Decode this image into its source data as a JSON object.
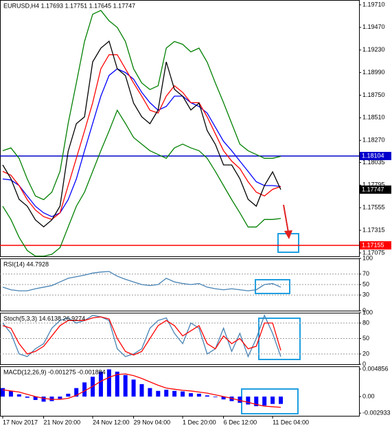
{
  "chart_data": [
    {
      "type": "line",
      "title": "EURUSD,H4  1.17693 1.17751 1.17645 1.17747",
      "categories": [
        "17 Nov 2017",
        null,
        null,
        null,
        null,
        "21 Nov 20:00",
        null,
        null,
        null,
        null,
        null,
        "24 Nov 12:00",
        null,
        null,
        null,
        null,
        "29 Nov 04:00",
        null,
        null,
        null,
        null,
        null,
        "1 Dec 20:00",
        null,
        null,
        null,
        null,
        "6 Dec 12:00",
        null,
        null,
        null,
        null,
        null,
        "11 Dec 04:00",
        null
      ],
      "series": [
        {
          "color": "#008000",
          "values": [
            1.1816,
            1.1819,
            1.1808,
            1.1786,
            1.1768,
            1.1764,
            1.1772,
            1.1794,
            1.1845,
            1.1888,
            1.1932,
            1.1961,
            1.1965,
            1.1954,
            1.1947,
            1.1932,
            1.1903,
            1.1888,
            1.1881,
            1.1885,
            1.1925,
            1.1932,
            1.1929,
            1.1921,
            1.1925,
            1.191,
            1.1888,
            1.1867,
            1.1845,
            1.1823,
            1.1816,
            1.1812,
            1.1808,
            1.1808,
            1.181
          ]
        },
        {
          "color": "#008000",
          "values": [
            1.1757,
            1.1743,
            1.1724,
            1.171,
            1.1704,
            1.1704,
            1.1706,
            1.1713,
            1.1735,
            1.1757,
            1.1772,
            1.1794,
            1.1816,
            1.1837,
            1.1859,
            1.1845,
            1.183,
            1.1823,
            1.1816,
            1.1812,
            1.1808,
            1.1819,
            1.1823,
            1.1819,
            1.1816,
            1.1808,
            1.1794,
            1.1779,
            1.1764,
            1.175,
            1.1735,
            1.1735,
            1.1743,
            1.1743,
            1.1744
          ]
        },
        {
          "color": "#0000ff",
          "values": [
            1.1786,
            1.1785,
            1.1779,
            1.1768,
            1.1757,
            1.175,
            1.1746,
            1.175,
            1.1764,
            1.1786,
            1.1816,
            1.1845,
            1.1874,
            1.1896,
            1.1903,
            1.1899,
            1.1892,
            1.1878,
            1.1867,
            1.1859,
            1.1863,
            1.1874,
            1.1874,
            1.1867,
            1.1863,
            1.1856,
            1.1841,
            1.1826,
            1.1816,
            1.1805,
            1.1794,
            1.1783,
            1.1779,
            1.1779,
            1.1778
          ]
        },
        {
          "color": "#ff0000",
          "values": [
            1.1794,
            1.179,
            1.1779,
            1.1764,
            1.1753,
            1.1746,
            1.1743,
            1.175,
            1.1779,
            1.1808,
            1.1837,
            1.1867,
            1.1903,
            1.1918,
            1.1918,
            1.1903,
            1.1888,
            1.1874,
            1.1859,
            1.1856,
            1.1874,
            1.1885,
            1.1878,
            1.1867,
            1.1867,
            1.1852,
            1.1834,
            1.1816,
            1.1805,
            1.1797,
            1.1783,
            1.1772,
            1.1768,
            1.1775,
            1.1778
          ]
        },
        {
          "color": "#000000",
          "values": [
            1.18009,
            1.17863,
            1.17644,
            1.17571,
            1.17425,
            1.17352,
            1.17425,
            1.17571,
            1.18155,
            1.18447,
            1.1852,
            1.19104,
            1.1925,
            1.19323,
            1.19031,
            1.18958,
            1.18666,
            1.1852,
            1.18447,
            1.18593,
            1.19104,
            1.18812,
            1.18739,
            1.18593,
            1.18666,
            1.18374,
            1.18228,
            1.18009,
            1.18009,
            1.17863,
            1.17644,
            1.17571,
            1.1779,
            1.17936,
            1.17747
          ]
        }
      ],
      "ylim": [
        1.17038,
        1.19761
      ],
      "yticks": [
        {
          "value": 1.1971,
          "label": "1.19710"
        },
        {
          "value": 1.1947,
          "label": "1.19470"
        },
        {
          "value": 1.1923,
          "label": "1.19230"
        },
        {
          "value": 1.1899,
          "label": "1.18990"
        },
        {
          "value": 1.1875,
          "label": "1.18750"
        },
        {
          "value": 1.1851,
          "label": "1.18510"
        },
        {
          "value": 1.1827,
          "label": "1.18270"
        },
        {
          "value": 1.18035,
          "label": "1.18035"
        },
        {
          "value": 1.17795,
          "label": "1.17795"
        },
        {
          "value": 1.17555,
          "label": "1.17555"
        },
        {
          "value": 1.17315,
          "label": "1.17315"
        },
        {
          "value": 1.17075,
          "label": "1.17075"
        }
      ],
      "levels": [
        {
          "value": 1.18104,
          "color": "#0000cc"
        },
        {
          "value": 1.17155,
          "color": "#ff0000"
        }
      ],
      "last_price": 1.17747
    },
    {
      "type": "line",
      "title": "RSI(14) 44.7928",
      "series": [
        {
          "color": "#4682b4",
          "values": [
            45,
            40,
            38,
            38,
            42,
            45,
            48,
            55,
            62,
            65,
            68,
            72,
            74,
            75,
            66,
            60,
            55,
            50,
            48,
            50,
            62,
            55,
            52,
            50,
            52,
            45,
            42,
            40,
            42,
            40,
            38,
            40,
            50,
            52,
            45
          ]
        }
      ],
      "ylim": [
        0,
        100
      ],
      "yticks": [
        100,
        70,
        50,
        30,
        0
      ]
    },
    {
      "type": "line",
      "title": "Stoch(5,3,3) 14.6138 26.9274",
      "series": [
        {
          "color": "#4682b4",
          "values": [
            80,
            60,
            20,
            15,
            30,
            40,
            70,
            85,
            90,
            80,
            85,
            95,
            92,
            85,
            30,
            15,
            20,
            30,
            70,
            85,
            90,
            60,
            40,
            80,
            70,
            20,
            30,
            70,
            25,
            60,
            15,
            50,
            95,
            60,
            15
          ]
        },
        {
          "color": "#ff0000",
          "values": [
            75,
            70,
            40,
            20,
            25,
            35,
            55,
            75,
            85,
            85,
            85,
            90,
            92,
            88,
            50,
            25,
            18,
            25,
            50,
            75,
            85,
            75,
            55,
            65,
            75,
            40,
            30,
            55,
            40,
            50,
            30,
            35,
            80,
            80,
            27
          ]
        }
      ],
      "ylim": [
        0,
        100
      ],
      "yticks": [
        100,
        80,
        50,
        20,
        0
      ]
    },
    {
      "type": "bar",
      "title": "MACD(12,26,9) -0.001275 -0.001884",
      "series": [
        {
          "color": "#0000ff",
          "values": [
            0.0015,
            0.001,
            0.0004,
            -0.0002,
            -0.0006,
            -0.0009,
            -0.0008,
            -0.0004,
            0.0005,
            0.0015,
            0.0025,
            0.0035,
            0.0044,
            0.0048,
            0.0044,
            0.0038,
            0.003,
            0.0022,
            0.0015,
            0.001,
            0.0012,
            0.001,
            0.0009,
            0.0006,
            0.0005,
            0.0002,
            -0.0001,
            -0.0005,
            -0.0008,
            -0.0011,
            -0.0014,
            -0.0017,
            -0.0016,
            -0.0013,
            -0.0013
          ]
        },
        {
          "color": "#ff0000",
          "style": "line",
          "values": [
            0.0012,
            0.001,
            0.0008,
            0.0004,
            0.0,
            -0.0003,
            -0.0005,
            -0.0005,
            -0.0003,
            0.0002,
            0.001,
            0.0018,
            0.0027,
            0.0034,
            0.0039,
            0.004,
            0.0037,
            0.0032,
            0.0026,
            0.002,
            0.0015,
            0.0013,
            0.0011,
            0.001,
            0.0008,
            0.0006,
            0.0003,
            0.0,
            -0.0003,
            -0.0007,
            -0.001,
            -0.0014,
            -0.0017,
            -0.0018,
            -0.0019
          ]
        }
      ],
      "ylim": [
        -0.0034,
        0.00534
      ],
      "yticks": [
        0.004856,
        {
          "value": 0,
          "label": "0.00"
        },
        -0.002933
      ]
    }
  ]
}
